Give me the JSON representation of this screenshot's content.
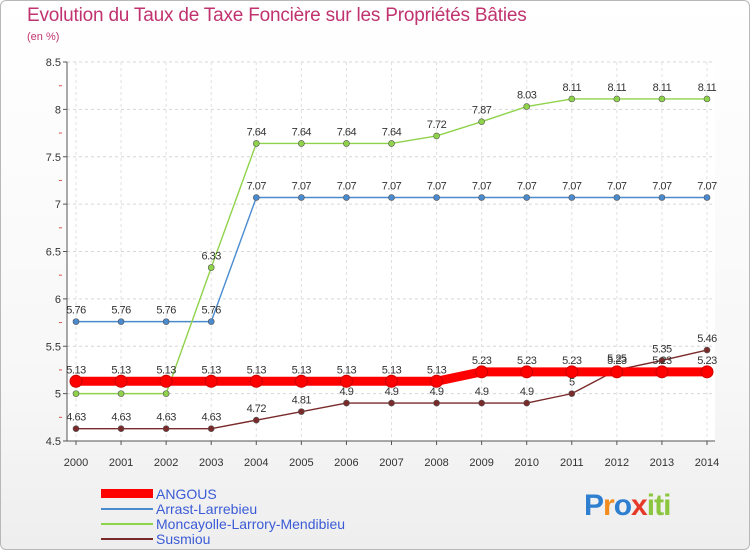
{
  "chart_data": {
    "type": "line",
    "title": "Evolution du Taux de Taxe Foncière sur les Propriétés Bâties",
    "subtitle": "(en %)",
    "x": [
      "2000",
      "2001",
      "2002",
      "2003",
      "2004",
      "2005",
      "2006",
      "2007",
      "2008",
      "2009",
      "2010",
      "2011",
      "2012",
      "2013",
      "2014"
    ],
    "ylim": [
      4.5,
      8.5
    ],
    "yticks": [
      "4.5",
      "5",
      "5.5",
      "6",
      "6.5",
      "7",
      "7.5",
      "8",
      "8.5"
    ],
    "series": [
      {
        "name": "ANGOUS",
        "color": "#ff0000",
        "values": [
          5.13,
          5.13,
          5.13,
          5.13,
          5.13,
          5.13,
          5.13,
          5.13,
          5.13,
          5.23,
          5.23,
          5.23,
          5.23,
          5.23,
          5.23
        ],
        "labels": [
          "5.13",
          "5.13",
          "5.13",
          "5.13",
          "5.13",
          "5.13",
          "5.13",
          "5.13",
          "5.13",
          "5.23",
          "5.23",
          "5.23",
          "5.23",
          "5.23",
          "5.23"
        ]
      },
      {
        "name": "Arrast-Larrebieu",
        "color": "#4a8bd0",
        "values": [
          5.76,
          5.76,
          5.76,
          5.76,
          7.07,
          7.07,
          7.07,
          7.07,
          7.07,
          7.07,
          7.07,
          7.07,
          7.07,
          7.07,
          7.07
        ],
        "labels": [
          "5.76",
          "5.76",
          "5.76",
          "5.76",
          "7.07",
          "7.07",
          "7.07",
          "7.07",
          "7.07",
          "7.07",
          "7.07",
          "7.07",
          "7.07",
          "7.07",
          "7.07"
        ]
      },
      {
        "name": "Moncayolle-Larrory-Mendibieu",
        "color": "#8fd34a",
        "values": [
          5,
          5,
          5,
          6.33,
          7.64,
          7.64,
          7.64,
          7.64,
          7.72,
          7.87,
          8.03,
          8.11,
          8.11,
          8.11,
          8.11
        ],
        "labels": [
          "",
          "",
          "",
          "6.33",
          "7.64",
          "7.64",
          "7.64",
          "7.64",
          "7.72",
          "7.87",
          "8.03",
          "8.11",
          "8.11",
          "8.11",
          "8.11"
        ]
      },
      {
        "name": "Susmiou",
        "color": "#7a2a2a",
        "values": [
          4.63,
          4.63,
          4.63,
          4.63,
          4.72,
          4.81,
          4.9,
          4.9,
          4.9,
          4.9,
          4.9,
          5,
          5.25,
          5.35,
          5.46
        ],
        "labels": [
          "4.63",
          "4.63",
          "4.63",
          "4.63",
          "4.72",
          "4.81",
          "4.9",
          "4.9",
          "4.9",
          "4.9",
          "4.9",
          "5",
          "5.25",
          "5.35",
          "5.46"
        ]
      }
    ]
  },
  "legend": {
    "items": [
      {
        "label": "ANGOUS",
        "color": "#ff0000"
      },
      {
        "label": "Arrast-Larrebieu",
        "color": "#4a8bd0"
      },
      {
        "label": "Moncayolle-Larrory-Mendibieu",
        "color": "#8fd34a"
      },
      {
        "label": "Susmiou",
        "color": "#7a2a2a"
      }
    ]
  },
  "logo": {
    "letters": [
      "P",
      "r",
      "o",
      "x",
      "i",
      "t",
      "i"
    ],
    "colors": [
      "#2f7fd0",
      "#f28c1e",
      "#2f7fd0",
      "#e53a2a",
      "#8cc63f",
      "#8cc63f",
      "#8cc63f"
    ]
  }
}
